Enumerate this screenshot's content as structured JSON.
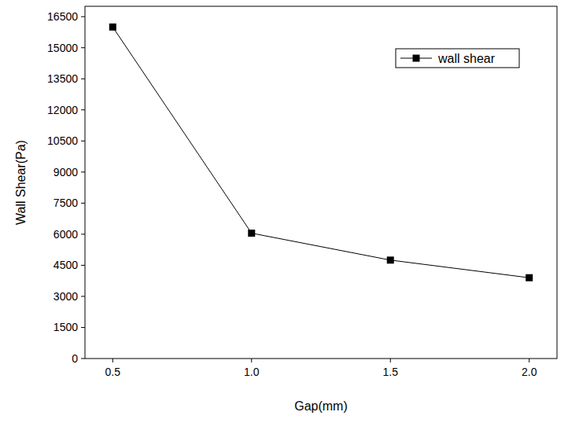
{
  "chart_data": {
    "type": "line",
    "x_label": "Gap(mm)",
    "y_label": "Wall Shear(Pa)",
    "x": [
      0.5,
      1,
      1.5,
      2
    ],
    "series": [
      {
        "name": "wall shear",
        "color": "#000000",
        "values": [
          16000,
          6050,
          4750,
          3900
        ],
        "marker": "square",
        "line_style": "solid"
      }
    ],
    "xlim": [
      0.4,
      2.1
    ],
    "xticks": [
      0.5,
      {
        "value": 1,
        "label": "1.0"
      },
      1.5,
      {
        "value": 2,
        "label": "2.0"
      }
    ],
    "ylim": [
      0,
      17000
    ],
    "yticks": [
      0,
      1500,
      3000,
      4500,
      6000,
      7500,
      9000,
      10500,
      12000,
      13500,
      15000,
      16500
    ],
    "grid": false,
    "legend": "top-right"
  }
}
